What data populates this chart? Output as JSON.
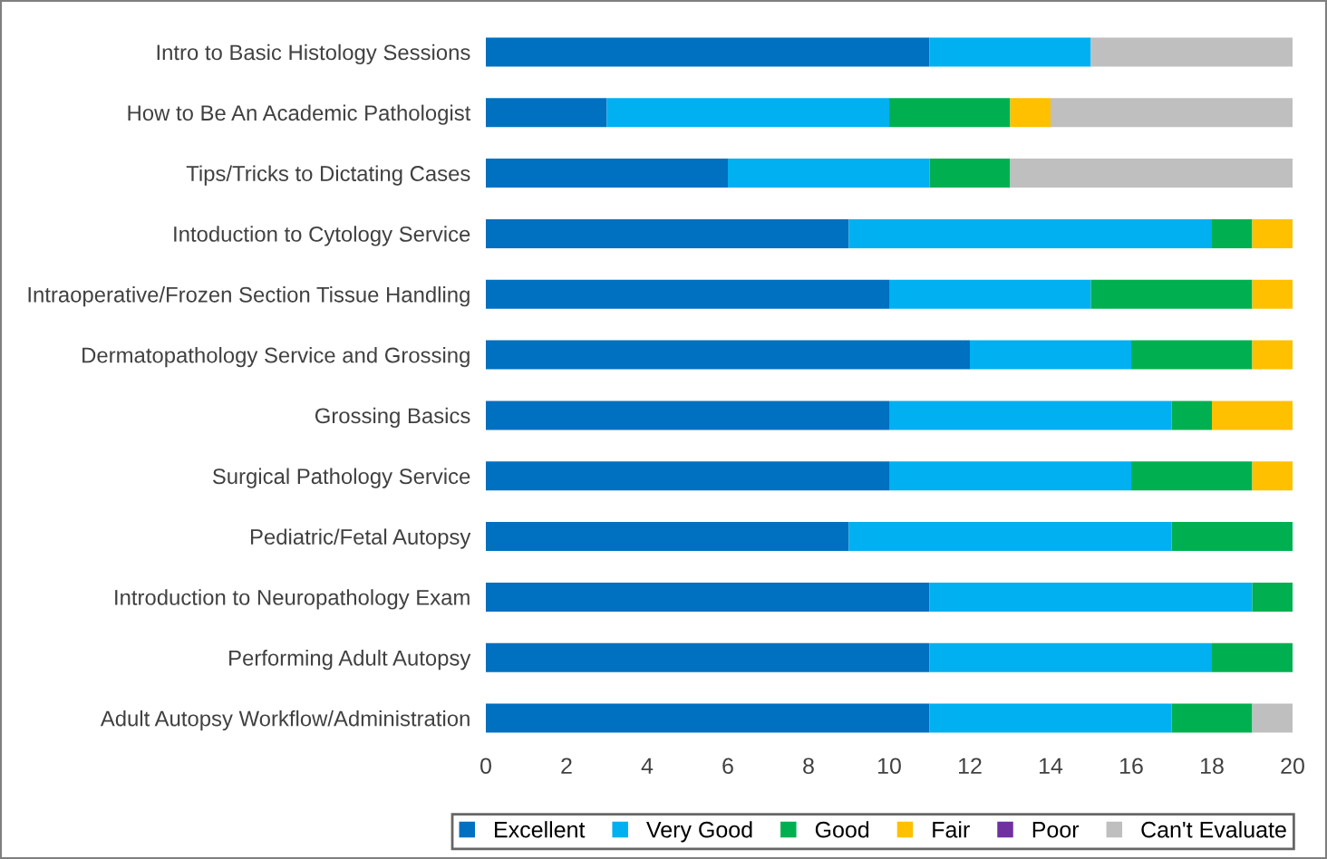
{
  "chart_data": {
    "type": "bar",
    "orientation": "horizontal",
    "stacked": true,
    "categories": [
      "Intro to Basic Histology Sessions",
      "How to Be An Academic Pathologist",
      "Tips/Tricks to Dictating Cases",
      "Intoduction to Cytology Service",
      "Intraoperative/Frozen Section Tissue Handling",
      "Dermatopathology Service and Grossing",
      "Grossing Basics",
      "Surgical Pathology Service",
      "Pediatric/Fetal Autopsy",
      "Introduction to Neuropathology Exam",
      "Performing Adult Autopsy",
      "Adult Autopsy Workflow/Administration"
    ],
    "series": [
      {
        "name": "Excellent",
        "color": "#0070c0",
        "values": [
          11,
          3,
          6,
          9,
          10,
          12,
          10,
          10,
          9,
          11,
          11,
          11
        ]
      },
      {
        "name": "Very Good",
        "color": "#00b0f0",
        "values": [
          4,
          7,
          5,
          9,
          5,
          4,
          7,
          6,
          8,
          8,
          7,
          6
        ]
      },
      {
        "name": "Good",
        "color": "#00b050",
        "values": [
          0,
          3,
          2,
          1,
          4,
          3,
          1,
          3,
          3,
          1,
          2,
          2
        ]
      },
      {
        "name": "Fair",
        "color": "#ffc000",
        "values": [
          0,
          1,
          0,
          1,
          1,
          1,
          2,
          1,
          0,
          0,
          0,
          0
        ]
      },
      {
        "name": "Poor",
        "color": "#7030a0",
        "values": [
          0,
          0,
          0,
          0,
          0,
          0,
          0,
          0,
          0,
          0,
          0,
          0
        ]
      },
      {
        "name": "Can't Evaluate",
        "color": "#bfbfbf",
        "values": [
          5,
          6,
          7,
          0,
          0,
          0,
          0,
          0,
          0,
          0,
          0,
          1
        ]
      }
    ],
    "xlim": [
      0,
      20
    ],
    "xticks": [
      0,
      2,
      4,
      6,
      8,
      10,
      12,
      14,
      16,
      18,
      20
    ],
    "grid": false,
    "legend": "bottom"
  }
}
